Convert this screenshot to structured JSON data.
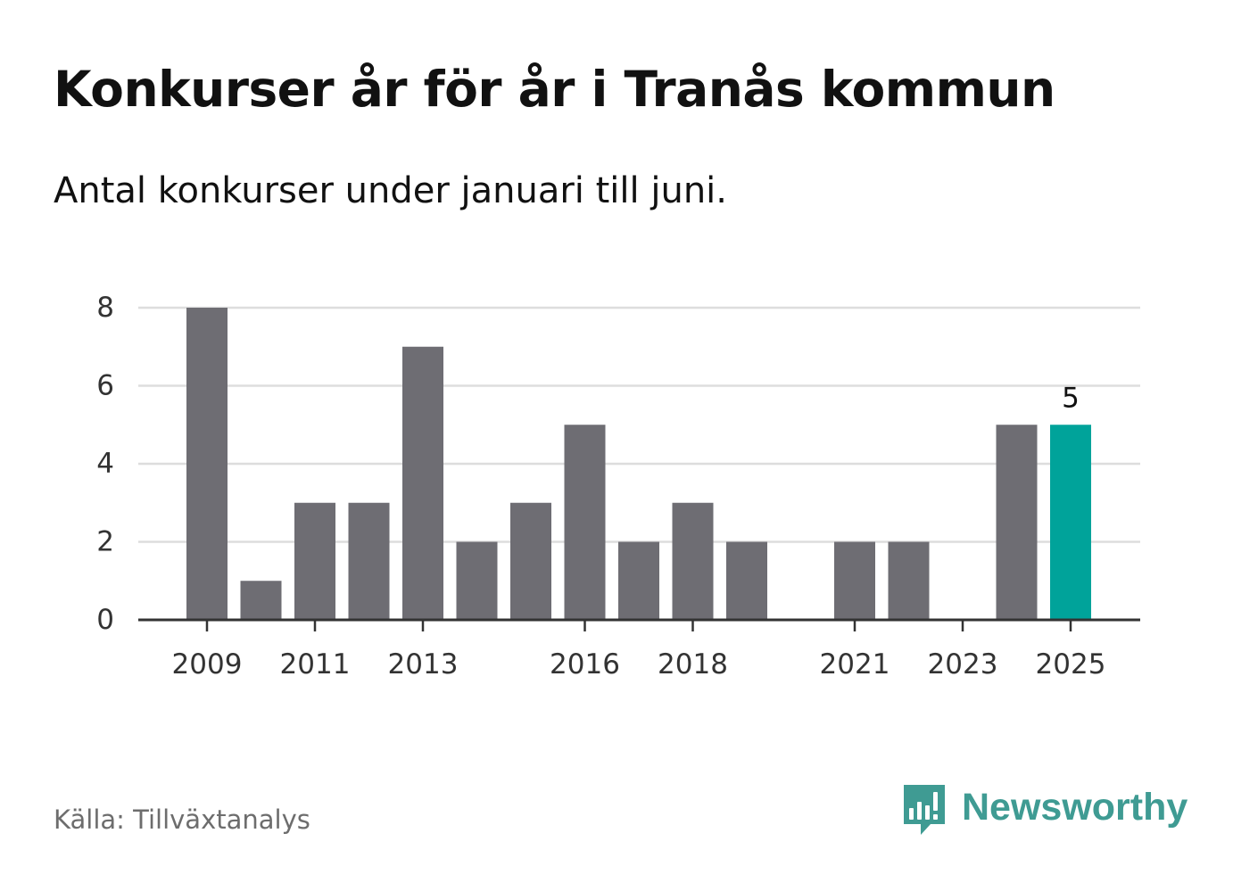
{
  "header": {
    "title": "Konkurser år för år i Tranås kommun",
    "subtitle": "Antal konkurser under januari till juni."
  },
  "footer": {
    "source": "Källa: Tillväxtanalys",
    "brand": "Newsworthy",
    "brand_icon": "newsworthy-chart-bubble-icon"
  },
  "colors": {
    "bar": "#6e6d73",
    "highlight": "#00a39a",
    "grid": "#dddddd",
    "axis": "#333333",
    "brand": "#3f9b93"
  },
  "chart_data": {
    "type": "bar",
    "categories": [
      "2009",
      "2010",
      "2011",
      "2012",
      "2013",
      "2014",
      "2015",
      "2016",
      "2017",
      "2018",
      "2019",
      "2020",
      "2021",
      "2022",
      "2023",
      "2024",
      "2025"
    ],
    "values": [
      8,
      1,
      3,
      3,
      7,
      2,
      3,
      5,
      2,
      3,
      2,
      0,
      2,
      2,
      0,
      5,
      5
    ],
    "x_tick_labels": [
      "2009",
      "2011",
      "2013",
      "2016",
      "2018",
      "2021",
      "2023",
      "2025"
    ],
    "y_ticks": [
      0,
      2,
      4,
      6,
      8
    ],
    "ylim": [
      0,
      8
    ],
    "grid": true,
    "highlight_category": "2025",
    "data_labels": [
      {
        "category": "2025",
        "text": "5"
      }
    ],
    "title": "",
    "xlabel": "",
    "ylabel": ""
  }
}
